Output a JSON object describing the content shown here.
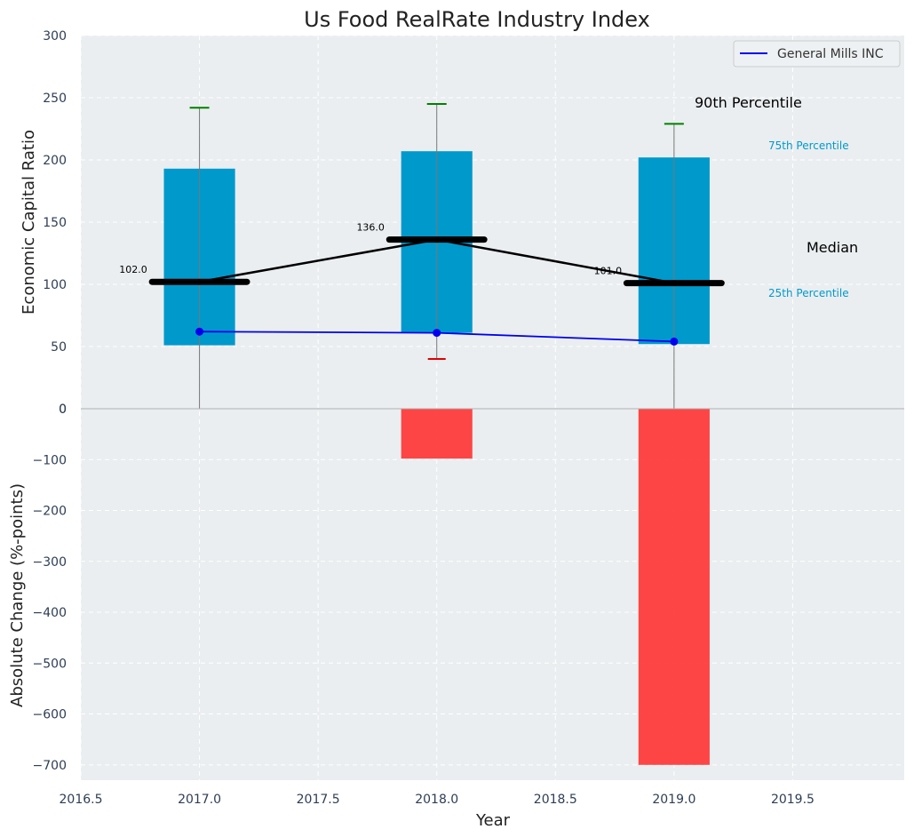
{
  "chart_data": {
    "type": "bar",
    "title": "Us Food RealRate Industry Index",
    "xlabel": "Year",
    "xlim": [
      2016.5,
      2019.97
    ],
    "xticks": [
      "2016.5",
      "2017.0",
      "2017.5",
      "2018.0",
      "2018.5",
      "2019.0",
      "2019.5"
    ],
    "xtick_values": [
      2016.5,
      2017.0,
      2017.5,
      2018.0,
      2018.5,
      2019.0,
      2019.5
    ],
    "grid": true,
    "top_panel": {
      "ylabel": "Economic Capital Ratio",
      "ylim": [
        0,
        300
      ],
      "yticks": [
        "0",
        "50",
        "100",
        "150",
        "200",
        "250",
        "300"
      ],
      "ytick_values": [
        0,
        50,
        100,
        150,
        200,
        250,
        300
      ],
      "years": [
        2017,
        2018,
        2019
      ],
      "percentile_10": [
        null,
        40,
        null
      ],
      "percentile_25": [
        51,
        61,
        52
      ],
      "median": [
        102,
        136,
        101
      ],
      "median_labels": [
        "102.0",
        "136.0",
        "101.0"
      ],
      "percentile_75": [
        193,
        207,
        202
      ],
      "percentile_90": [
        242,
        245,
        229
      ],
      "whisker_low": [
        0,
        40,
        0
      ],
      "series": [
        {
          "name": "General Mills INC",
          "values": [
            62,
            61,
            54
          ],
          "color": "#0000ee"
        }
      ],
      "annotations": {
        "p90": "90th Percentile",
        "p75": "75th Percentile",
        "median": "Median",
        "p25": "25th Percentile"
      },
      "legend_placement": "top-right"
    },
    "bottom_panel": {
      "ylabel": "Absolute Change (%-points)",
      "ylim": [
        -730,
        0
      ],
      "yticks": [
        "0",
        "−100",
        "−200",
        "−300",
        "−400",
        "−500",
        "−600",
        "−700"
      ],
      "ytick_values": [
        0,
        -100,
        -200,
        -300,
        -400,
        -500,
        -600,
        -700
      ],
      "years": [
        2017,
        2018,
        2019
      ],
      "values": [
        0,
        -98,
        -700
      ]
    },
    "colors": {
      "box": "#0099cc",
      "series_line": "#0000ee",
      "negative_bar": "#ff3b3b",
      "p90_cap": "#008000",
      "p10_cap": "#e00000",
      "median_bar": "#000000",
      "annotation_blue": "#0099cc",
      "plot_bg": "#eaeef0"
    }
  }
}
